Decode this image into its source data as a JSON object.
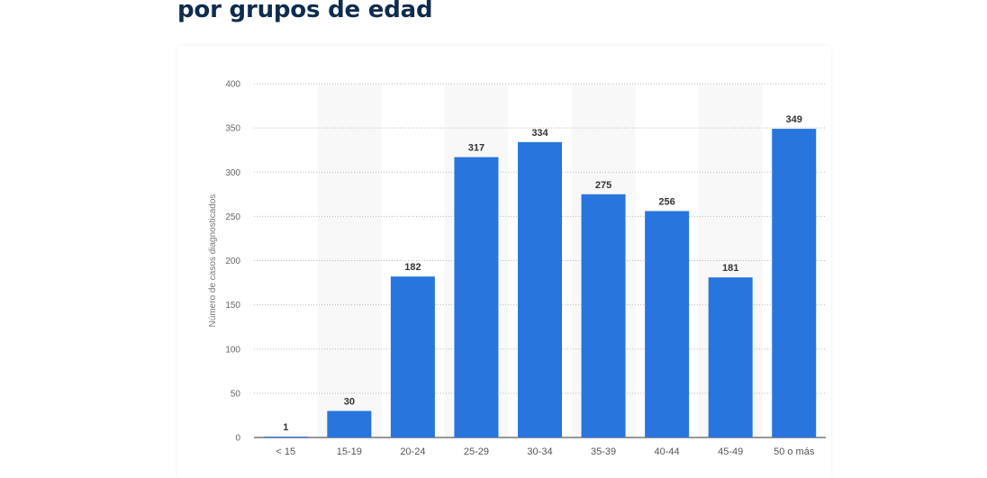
{
  "heading": "por grupos de edad",
  "chart_data": {
    "type": "bar",
    "categories": [
      "< 15",
      "15-19",
      "20-24",
      "25-29",
      "30-34",
      "35-39",
      "40-44",
      "45-49",
      "50 o más"
    ],
    "values": [
      1,
      30,
      182,
      317,
      334,
      275,
      256,
      181,
      349
    ],
    "title": "",
    "xlabel": "",
    "ylabel": "Número de casos diagnosticados",
    "ylim": [
      0,
      400
    ],
    "yticks": [
      0,
      50,
      100,
      150,
      200,
      250,
      300,
      350,
      400
    ],
    "grid": true,
    "bar_color": "#2875dd",
    "alt_band_color": "#f8f8f8"
  }
}
